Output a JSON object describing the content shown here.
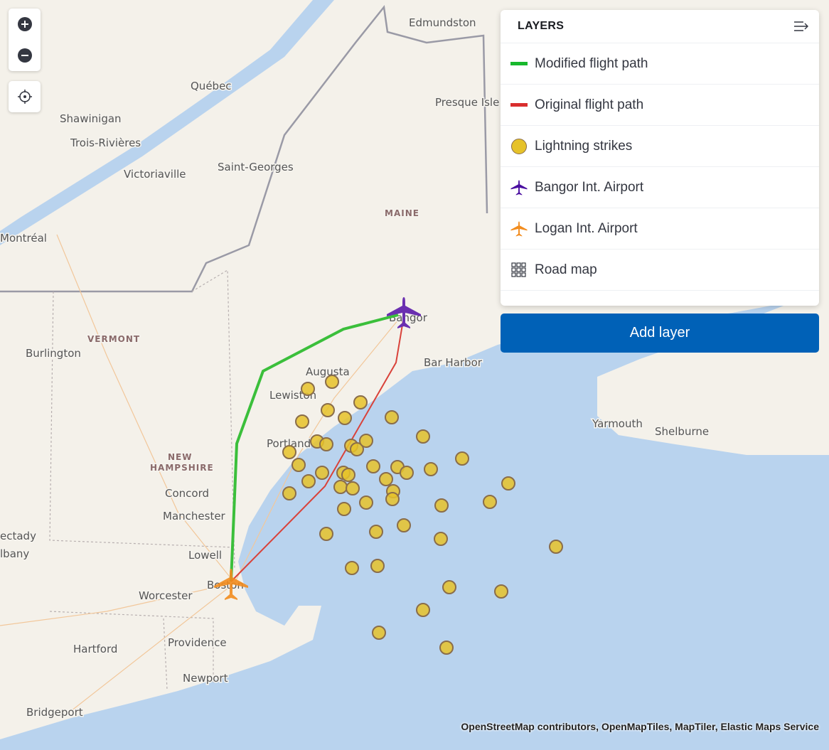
{
  "map": {
    "labels": {
      "edmundston": "Edmundston",
      "quebec": "Québec",
      "shawinigan": "Shawinigan",
      "trois": "Trois-Rivières",
      "victoriaville": "Victoriaville",
      "saintgeorges": "Saint-Georges",
      "presque": "Presque Isle",
      "maine": "MAINE",
      "montreal": "Montréal",
      "vermont": "VERMONT",
      "burlington": "Burlington",
      "bangor": "Bangor",
      "barharbor": "Bar Harbor",
      "augusta": "Augusta",
      "lewiston": "Lewiston",
      "portland": "Portland",
      "newhampshire1": "NEW",
      "newhampshire2": "HAMPSHIRE",
      "concord": "Concord",
      "manchester": "Manchester",
      "lowell": "Lowell",
      "boston": "Boston",
      "worcester": "Worcester",
      "hartford": "Hartford",
      "providence": "Providence",
      "newport": "Newport",
      "bridgeport": "Bridgeport",
      "yarmouth": "Yarmouth",
      "shelburne": "Shelburne",
      "schenectady": "ectady",
      "albany": "lbany"
    },
    "colors": {
      "modified_path": "#3bbf3b",
      "original_path": "#d9423a",
      "lightning": "#e6c229",
      "bangor": "#6a2fb0",
      "logan": "#f28c1e",
      "sea": "#b9d3ee",
      "land": "#f4f1ea"
    },
    "attribution": "OpenStreetMap contributors, OpenMapTiles, MapTiler, Elastic Maps Service"
  },
  "controls": {
    "zoom_in_icon": "plus-circle-icon",
    "zoom_out_icon": "minus-circle-icon",
    "locate_icon": "crosshair-icon"
  },
  "layers_panel": {
    "title": "LAYERS",
    "collapse_icon": "collapse-right-icon",
    "items": [
      {
        "label": "Modified flight path",
        "icon": "line-icon",
        "color": "#17b82c"
      },
      {
        "label": "Original flight path",
        "icon": "line-icon",
        "color": "#d92e2e"
      },
      {
        "label": "Lightning strikes",
        "icon": "circle-icon",
        "color": "#e6c229"
      },
      {
        "label": "Bangor Int. Airport",
        "icon": "airplane-icon",
        "color": "#4a0fa0"
      },
      {
        "label": "Logan Int. Airport",
        "icon": "airplane-icon",
        "color": "#f28c1e"
      },
      {
        "label": "Road map",
        "icon": "grid-icon",
        "color": "#343741"
      }
    ],
    "add_layer": "Add layer"
  }
}
